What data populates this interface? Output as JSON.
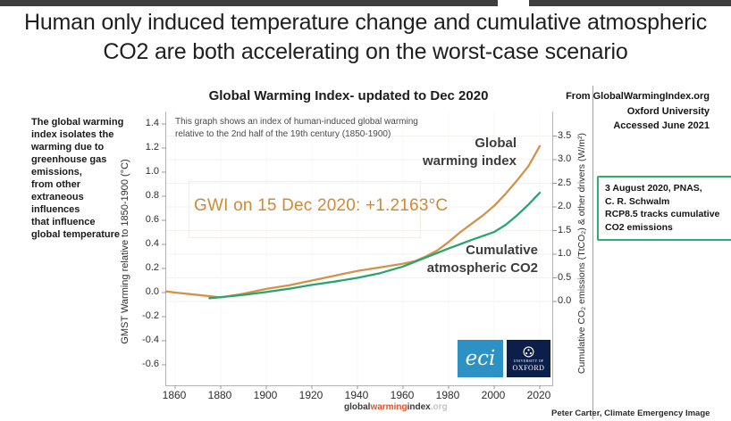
{
  "header": {
    "title": "Human only induced temperature change and cumulative atmospheric\nCO2 are both accelerating on the worst-case scenario"
  },
  "chart": {
    "title": "Global Warming Index- updated to Dec 2020",
    "subtitle": "This graph shows an index of human-induced global warming\nrelative to the 2nd half of the 19th century (1850-1900)",
    "annotation": "GWI on 15 Dec 2020: +1.2163°C",
    "series_label_gwi": "Global\nwarming index",
    "series_label_co2": "Cumulative\natmospheric CO2",
    "logos": {
      "eci": "eci",
      "oxford_line1": "UNIVERSITY OF",
      "oxford_line2": "OXFORD"
    }
  },
  "left_note": "The global warming\nindex isolates the\nwarming due to\ngreenhouse gas\nemissions,\nfrom other\nextraneous\ninfluences\nthat influence\nglobal temperature",
  "source_note": {
    "line1": "From GlobalWarmingIndex.org",
    "line2": "Oxford University",
    "line3": "Accessed June 2021"
  },
  "callout_box": {
    "text": "3 August 2020, PNAS,\nC. R. Schwalm\nRCP8.5 tracks cumulative\nCO2 emissions",
    "border_color": "#2eae6e"
  },
  "footer": {
    "brand_global": "global",
    "brand_warming": "warming",
    "brand_index": "index",
    "brand_org": ".org",
    "credit": "Peter Carter, Climate Emergency Image"
  },
  "colors": {
    "gwi_line": "#d2924a",
    "co2_line": "#2aa470",
    "annotation_text": "#cf8a33",
    "callout_border": "#2eae6e",
    "eci_blue": "#2d92c3",
    "oxford_navy": "#0c1f4a",
    "topbar": "#3e3e3e"
  },
  "chart_data": {
    "type": "line",
    "title": "Global Warming Index- updated to Dec 2020",
    "x_ticks": [
      1860,
      1880,
      1900,
      1920,
      1940,
      1960,
      1980,
      2000,
      2020
    ],
    "x_range": [
      1856,
      2025
    ],
    "left_axis": {
      "label": "GMST Warming relative to 1850-1900 (°C)",
      "ticks": [
        1.4,
        1.2,
        1.0,
        0.8,
        0.6,
        0.4,
        0.2,
        0.0,
        -0.2,
        -0.4,
        -0.6
      ],
      "range": [
        -0.6,
        1.4
      ]
    },
    "right_axis": {
      "label": "Cumulative CO₂ emissions (TtCO₂) & other drivers (W/m²)",
      "ticks": [
        3.5,
        3.0,
        2.5,
        2.0,
        1.5,
        1.0,
        0.5,
        0.0
      ],
      "range": [
        0.0,
        3.5
      ]
    },
    "grid": "very-faint",
    "legend_position": "inline-labels",
    "series": [
      {
        "name": "Global warming index",
        "axis": "left",
        "color": "#d2924a",
        "x": [
          1856,
          1860,
          1870,
          1880,
          1890,
          1900,
          1910,
          1920,
          1930,
          1940,
          1950,
          1960,
          1965,
          1970,
          1975,
          1980,
          1985,
          1990,
          1995,
          2000,
          2005,
          2010,
          2015,
          2020
        ],
        "y": [
          0.01,
          0.0,
          -0.02,
          -0.04,
          -0.01,
          0.03,
          0.06,
          0.1,
          0.14,
          0.18,
          0.21,
          0.24,
          0.26,
          0.3,
          0.35,
          0.42,
          0.5,
          0.57,
          0.64,
          0.72,
          0.82,
          0.93,
          1.05,
          1.2163
        ],
        "final_value_label": "+1.2163°C"
      },
      {
        "name": "Cumulative atmospheric CO2",
        "axis": "right",
        "color": "#2aa470",
        "x": [
          1875,
          1880,
          1890,
          1900,
          1910,
          1920,
          1930,
          1940,
          1950,
          1960,
          1970,
          1980,
          1990,
          2000,
          2005,
          2010,
          2015,
          2020
        ],
        "y": [
          0.07,
          0.09,
          0.14,
          0.2,
          0.27,
          0.35,
          0.42,
          0.5,
          0.6,
          0.74,
          0.93,
          1.12,
          1.3,
          1.47,
          1.62,
          1.82,
          2.05,
          2.3
        ]
      }
    ]
  }
}
